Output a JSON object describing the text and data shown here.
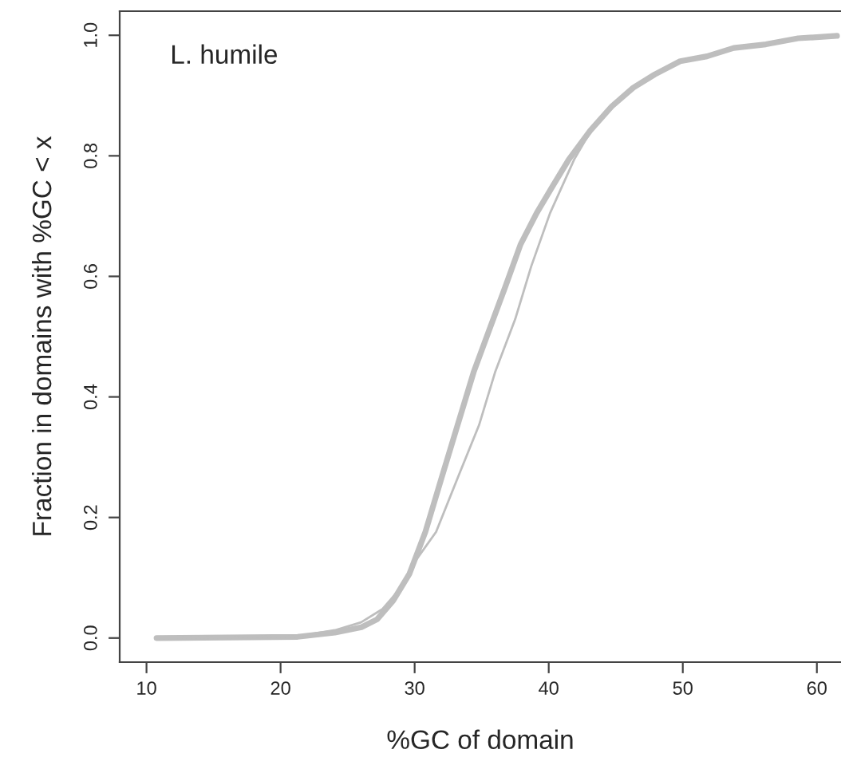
{
  "chart_data": {
    "type": "line",
    "xlabel": "%GC of domain",
    "ylabel": "Fraction in domains with %GC < x",
    "annotations": [
      "L. humile"
    ],
    "xlim": [
      8,
      61.8
    ],
    "ylim": [
      -0.04,
      1.04
    ],
    "xticks": [
      10,
      20,
      30,
      40,
      50,
      60
    ],
    "yticks": [
      {
        "value": 0,
        "label": "0.0"
      },
      {
        "value": 0.2,
        "label": "0.2"
      },
      {
        "value": 0.4,
        "label": "0.4"
      },
      {
        "value": 0.6,
        "label": "0.6"
      },
      {
        "value": 0.8,
        "label": "0.8"
      },
      {
        "value": 1,
        "label": "1.0"
      }
    ],
    "grid": false,
    "legend": false,
    "marker": "none",
    "line_style": "solid",
    "series": [
      {
        "color": "#bebebe",
        "x": [
          10.75,
          21.27,
          24.05,
          26.03,
          27.2,
          28.4,
          29.6,
          30.8,
          32.0,
          33.2,
          34.4,
          35.56,
          36.75,
          37.9,
          39.1,
          40.3,
          41.5,
          43.1,
          44.7,
          46.3,
          47.9,
          49.8,
          51.8,
          53.8,
          56.2,
          58.6,
          61.5
        ],
        "values": [
          0,
          0.002,
          0.009,
          0.018,
          0.031,
          0.062,
          0.106,
          0.176,
          0.265,
          0.353,
          0.441,
          0.511,
          0.582,
          0.653,
          0.705,
          0.75,
          0.794,
          0.842,
          0.882,
          0.913,
          0.935,
          0.957,
          0.965,
          0.979,
          0.985,
          0.995,
          0.999
        ]
      },
      {
        "color": "#bebebe",
        "x": [
          10.75,
          21.27,
          24.05,
          26.0,
          27.6,
          28.8,
          29.9,
          31.6,
          33.2,
          34.8,
          36.0,
          37.5,
          38.7,
          40.1,
          41.9,
          43.5,
          45.1,
          46.3,
          47.9,
          49.8,
          51.8,
          53.8,
          56.2,
          58.6,
          61.5
        ],
        "values": [
          0,
          0.003,
          0.013,
          0.026,
          0.048,
          0.079,
          0.123,
          0.176,
          0.265,
          0.353,
          0.441,
          0.529,
          0.617,
          0.705,
          0.794,
          0.855,
          0.891,
          0.913,
          0.937,
          0.958,
          0.967,
          0.98,
          0.986,
          0.995,
          0.999
        ]
      }
    ]
  }
}
